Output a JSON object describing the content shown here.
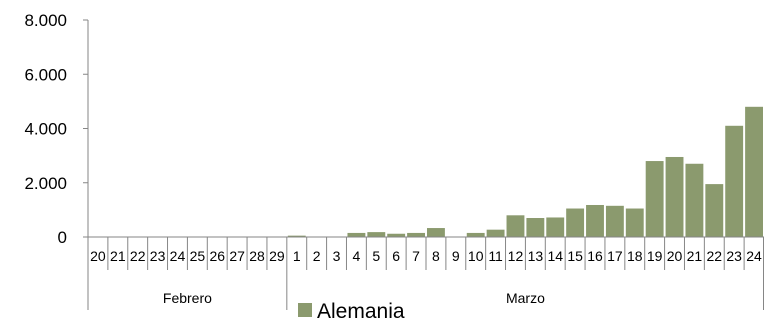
{
  "chart_data": {
    "type": "bar",
    "ylim": [
      0,
      8000
    ],
    "y_ticks": [
      0,
      2000,
      4000,
      6000,
      8000
    ],
    "y_tick_labels": [
      "0",
      "2.000",
      "4.000",
      "6.000",
      "8.000"
    ],
    "categories": [
      "20",
      "21",
      "22",
      "23",
      "24",
      "25",
      "26",
      "27",
      "28",
      "29",
      "1",
      "2",
      "3",
      "4",
      "5",
      "6",
      "7",
      "8",
      "9",
      "10",
      "11",
      "12",
      "13",
      "14",
      "15",
      "16",
      "17",
      "18",
      "19",
      "20",
      "21",
      "22",
      "23",
      "24"
    ],
    "month_groups": [
      {
        "label": "Febrero",
        "count": 10
      },
      {
        "label": "Marzo",
        "count": 24
      }
    ],
    "series": [
      {
        "name": "Alemania",
        "color": "#8b9a6e",
        "values": [
          0,
          0,
          0,
          0,
          0,
          0,
          0,
          0,
          0,
          0,
          50,
          0,
          0,
          150,
          180,
          120,
          150,
          330,
          0,
          150,
          270,
          800,
          700,
          720,
          1050,
          1180,
          1150,
          1050,
          2800,
          2950,
          2700,
          1950,
          4100,
          4800
        ]
      }
    ],
    "grid": false,
    "legend_position": "bottom"
  }
}
